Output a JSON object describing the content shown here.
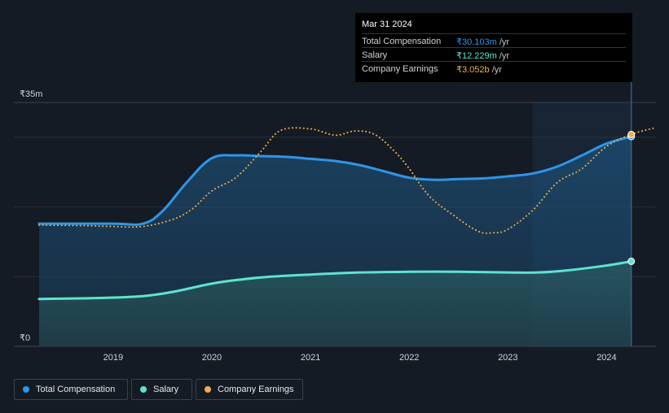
{
  "chart_data": {
    "type": "area",
    "y_unit_label": "₹",
    "ylim": [
      0,
      35
    ],
    "y_ticks": [
      {
        "value": 35,
        "label": "₹35m"
      },
      {
        "value": 0,
        "label": "₹0"
      }
    ],
    "gridlines": [
      10,
      20,
      30,
      35
    ],
    "xlim": [
      2018.25,
      2024.5
    ],
    "x_ticks": [
      {
        "value": 2019,
        "label": "2019"
      },
      {
        "value": 2020,
        "label": "2020"
      },
      {
        "value": 2021,
        "label": "2021"
      },
      {
        "value": 2022,
        "label": "2022"
      },
      {
        "value": 2023,
        "label": "2023"
      },
      {
        "value": 2024,
        "label": "2024"
      }
    ],
    "highlight_range": [
      2023.25,
      2024.25
    ],
    "series": [
      {
        "name": "Total Compensation",
        "color": "#2f95e8",
        "style": "solid-area",
        "points": [
          [
            2018.25,
            17.6
          ],
          [
            2019.0,
            17.6
          ],
          [
            2019.3,
            17.6
          ],
          [
            2019.5,
            19.4
          ],
          [
            2019.75,
            23.6
          ],
          [
            2020.0,
            27.0
          ],
          [
            2020.25,
            27.4
          ],
          [
            2020.5,
            27.3
          ],
          [
            2020.75,
            27.2
          ],
          [
            2021.0,
            26.9
          ],
          [
            2021.25,
            26.6
          ],
          [
            2021.5,
            26.0
          ],
          [
            2021.75,
            25.1
          ],
          [
            2022.0,
            24.2
          ],
          [
            2022.25,
            23.9
          ],
          [
            2022.5,
            24.0
          ],
          [
            2022.75,
            24.1
          ],
          [
            2023.0,
            24.4
          ],
          [
            2023.25,
            24.8
          ],
          [
            2023.5,
            25.8
          ],
          [
            2023.75,
            27.4
          ],
          [
            2024.0,
            29.1
          ],
          [
            2024.25,
            30.1
          ]
        ]
      },
      {
        "name": "Salary",
        "color": "#5de3d2",
        "style": "solid-area",
        "points": [
          [
            2018.25,
            6.8
          ],
          [
            2018.75,
            6.9
          ],
          [
            2019.0,
            7.0
          ],
          [
            2019.3,
            7.2
          ],
          [
            2019.6,
            7.8
          ],
          [
            2020.0,
            9.0
          ],
          [
            2020.3,
            9.6
          ],
          [
            2020.6,
            10.0
          ],
          [
            2021.0,
            10.3
          ],
          [
            2021.5,
            10.6
          ],
          [
            2022.0,
            10.7
          ],
          [
            2022.5,
            10.7
          ],
          [
            2023.0,
            10.6
          ],
          [
            2023.3,
            10.6
          ],
          [
            2023.6,
            10.9
          ],
          [
            2024.0,
            11.6
          ],
          [
            2024.25,
            12.2
          ]
        ]
      },
      {
        "name": "Company Earnings",
        "color": "#efad4e",
        "style": "dotted",
        "points": [
          [
            2018.25,
            17.4
          ],
          [
            2018.75,
            17.3
          ],
          [
            2019.0,
            17.2
          ],
          [
            2019.3,
            17.2
          ],
          [
            2019.6,
            18.2
          ],
          [
            2019.8,
            19.7
          ],
          [
            2020.0,
            22.3
          ],
          [
            2020.25,
            24.3
          ],
          [
            2020.5,
            28.0
          ],
          [
            2020.7,
            31.0
          ],
          [
            2021.0,
            31.2
          ],
          [
            2021.25,
            30.3
          ],
          [
            2021.45,
            30.9
          ],
          [
            2021.65,
            30.4
          ],
          [
            2021.85,
            28.0
          ],
          [
            2022.0,
            25.5
          ],
          [
            2022.2,
            21.6
          ],
          [
            2022.45,
            18.8
          ],
          [
            2022.7,
            16.5
          ],
          [
            2022.85,
            16.3
          ],
          [
            2023.0,
            16.8
          ],
          [
            2023.25,
            19.5
          ],
          [
            2023.5,
            23.5
          ],
          [
            2023.75,
            25.5
          ],
          [
            2024.0,
            28.7
          ],
          [
            2024.25,
            30.4
          ],
          [
            2024.5,
            31.4
          ]
        ]
      }
    ],
    "end_markers": [
      {
        "series": "Total Compensation",
        "x": 2024.25,
        "y": 30.1
      },
      {
        "series": "Salary",
        "x": 2024.25,
        "y": 12.2
      },
      {
        "series": "Company Earnings",
        "x": 2024.25,
        "y": 30.4
      }
    ]
  },
  "tooltip": {
    "date": "Mar 31 2024",
    "rows": [
      {
        "label": "Total Compensation",
        "value": "₹30.103m",
        "unit": " /yr",
        "color": "#2f95e8"
      },
      {
        "label": "Salary",
        "value": "₹12.229m",
        "unit": " /yr",
        "color": "#5de3d2"
      },
      {
        "label": "Company Earnings",
        "value": "₹3.052b",
        "unit": " /yr",
        "color": "#efad4e"
      }
    ]
  },
  "legend": {
    "items": [
      {
        "label": "Total Compensation",
        "color": "#2f95e8"
      },
      {
        "label": "Salary",
        "color": "#5de3d2"
      },
      {
        "label": "Company Earnings",
        "color": "#efad4e"
      }
    ]
  }
}
